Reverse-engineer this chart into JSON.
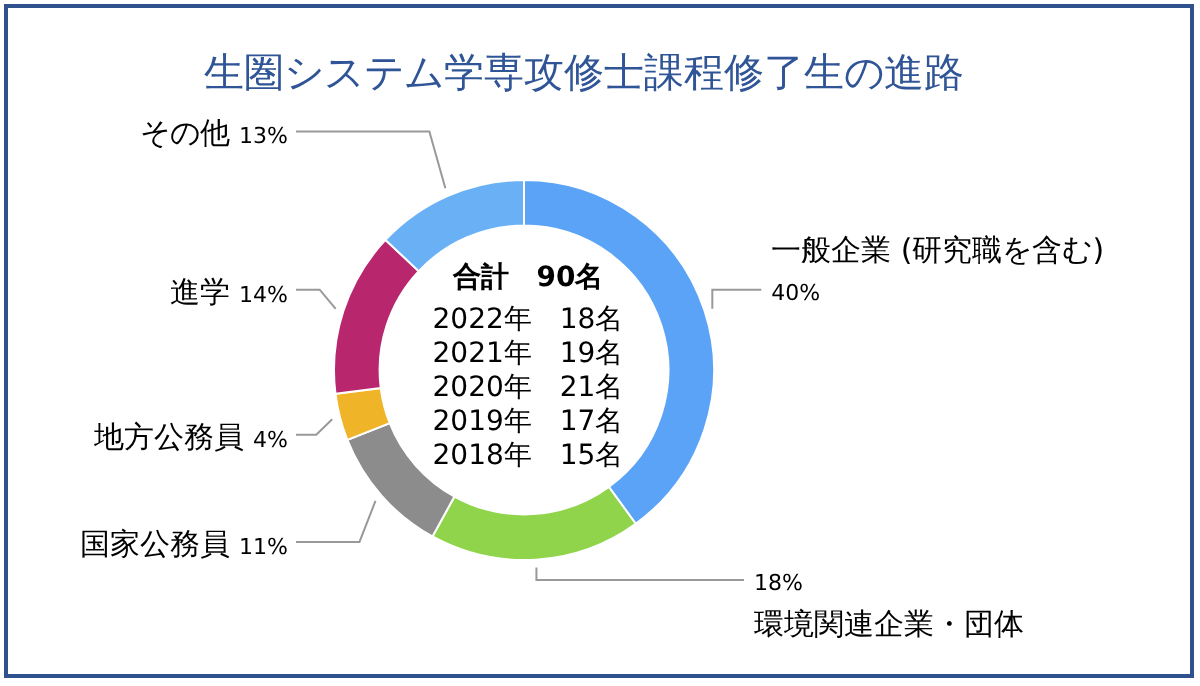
{
  "chart_data": {
    "type": "donut",
    "title": "生圏システム学専攻修士課程修了生の進路",
    "categories": [
      "一般企業 (研究職を含む)",
      "環境関連企業・団体",
      "国家公務員",
      "地方公務員",
      "進学",
      "その他"
    ],
    "values": [
      40,
      18,
      11,
      4,
      14,
      13
    ],
    "value_labels": [
      "40%",
      "18%",
      "11%",
      "4%",
      "14%",
      "13%"
    ],
    "colors": [
      "#5aa3f7",
      "#8fd44a",
      "#8c8c8c",
      "#f0b429",
      "#b8266e",
      "#6ab0f5"
    ],
    "annotations": [
      "合計　90名",
      "2022年　18名",
      "2021年　19名",
      "2020年　21名",
      "2019年　17名",
      "2018年　15名"
    ]
  }
}
